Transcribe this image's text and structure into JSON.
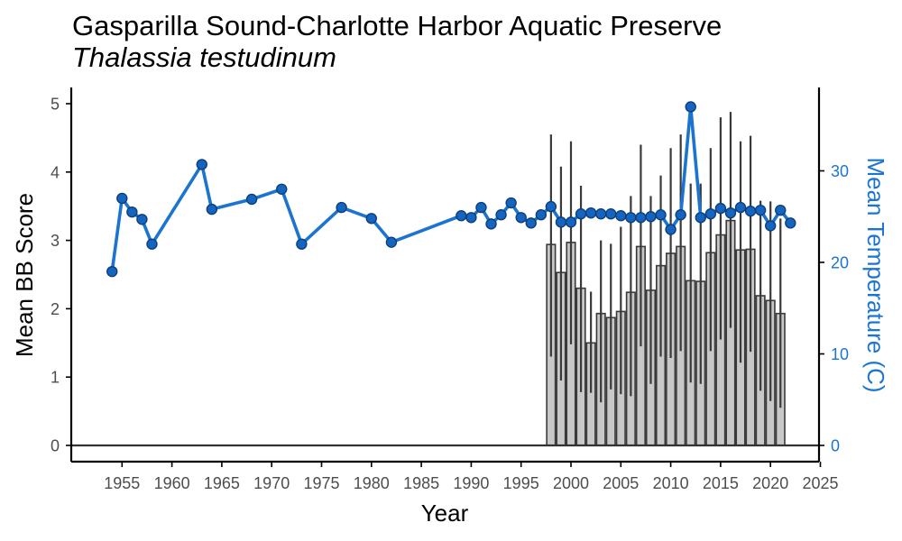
{
  "title": "Gasparilla Sound-Charlotte Harbor Aquatic Preserve",
  "subtitle": "Thalassia testudinum",
  "colors": {
    "line": "#1b75d0",
    "point_fill": "#1565c0",
    "point_stroke": "#0d3f7a",
    "bar_fill": "#c8c8c8",
    "bar_stroke": "#3a3a3a",
    "errorbar": "#3a3a3a",
    "axis": "#000000",
    "right_axis_text": "#1b75d0"
  },
  "chart_data": {
    "type": "bar",
    "xlabel": "Year",
    "ylabel": "Mean BB Score",
    "y2label": "Mean Temperature (C)",
    "xlim": [
      1950,
      2025
    ],
    "ylim": [
      0,
      5
    ],
    "y2lim": [
      0,
      38
    ],
    "x_ticks": [
      "1955",
      "1960",
      "1965",
      "1970",
      "1975",
      "1980",
      "1985",
      "1990",
      "1995",
      "2000",
      "2005",
      "2010",
      "2015",
      "2020",
      "2025"
    ],
    "y_ticks": [
      "0",
      "1",
      "2",
      "3",
      "4",
      "5"
    ],
    "y2_ticks": [
      "0",
      "10",
      "20",
      "30"
    ],
    "grid": false,
    "series": [
      {
        "type": "bar",
        "axis": "left",
        "x": [
          1998,
          1999,
          2000,
          2001,
          2002,
          2003,
          2004,
          2005,
          2006,
          2007,
          2008,
          2009,
          2010,
          2011,
          2012,
          2013,
          2014,
          2015,
          2016,
          2017,
          2018,
          2019,
          2020,
          2021
        ],
        "values": [
          2.94,
          2.53,
          2.97,
          2.3,
          1.5,
          1.93,
          1.87,
          1.96,
          2.24,
          2.91,
          2.27,
          2.63,
          2.81,
          2.91,
          2.41,
          2.4,
          2.82,
          3.08,
          3.29,
          2.86,
          2.87,
          2.19,
          2.12,
          1.93
        ],
        "error_low": [
          1.3,
          0.95,
          1.48,
          0.78,
          0.77,
          0.63,
          0.82,
          0.75,
          0.72,
          1.45,
          0.9,
          1.3,
          1.28,
          1.38,
          0.92,
          0.9,
          1.38,
          1.55,
          1.72,
          1.21,
          1.37,
          0.8,
          0.65,
          0.55
        ],
        "error_high": [
          4.55,
          4.08,
          4.45,
          3.8,
          2.25,
          3.0,
          2.95,
          3.2,
          3.65,
          4.4,
          3.65,
          3.95,
          4.35,
          4.55,
          3.83,
          3.83,
          4.35,
          4.8,
          4.88,
          4.45,
          4.53,
          3.58,
          3.57,
          3.32
        ]
      },
      {
        "type": "line",
        "axis": "right",
        "x": [
          1954,
          1955,
          1956,
          1957,
          1958,
          1963,
          1964,
          1968,
          1971,
          1973,
          1977,
          1980,
          1982,
          1989,
          1990,
          1991,
          1992,
          1993,
          1994,
          1995,
          1996,
          1997,
          1998,
          1999,
          2000,
          2001,
          2002,
          2003,
          2004,
          2005,
          2006,
          2007,
          2008,
          2009,
          2010,
          2011,
          2012,
          2013,
          2014,
          2015,
          2016,
          2017,
          2018,
          2019,
          2020,
          2021,
          2022
        ],
        "values": [
          19.0,
          27.0,
          25.5,
          24.7,
          22.0,
          30.7,
          25.8,
          26.9,
          28.0,
          22.0,
          26.0,
          24.8,
          22.2,
          25.1,
          24.9,
          26.0,
          24.2,
          25.2,
          26.5,
          24.9,
          24.3,
          25.2,
          26.1,
          24.4,
          24.4,
          25.3,
          25.4,
          25.3,
          25.3,
          25.1,
          24.9,
          24.9,
          25.0,
          25.2,
          23.6,
          25.2,
          37.0,
          24.9,
          25.3,
          25.9,
          25.4,
          26.0,
          25.6,
          25.7,
          24.0,
          25.7,
          24.3
        ]
      }
    ]
  }
}
